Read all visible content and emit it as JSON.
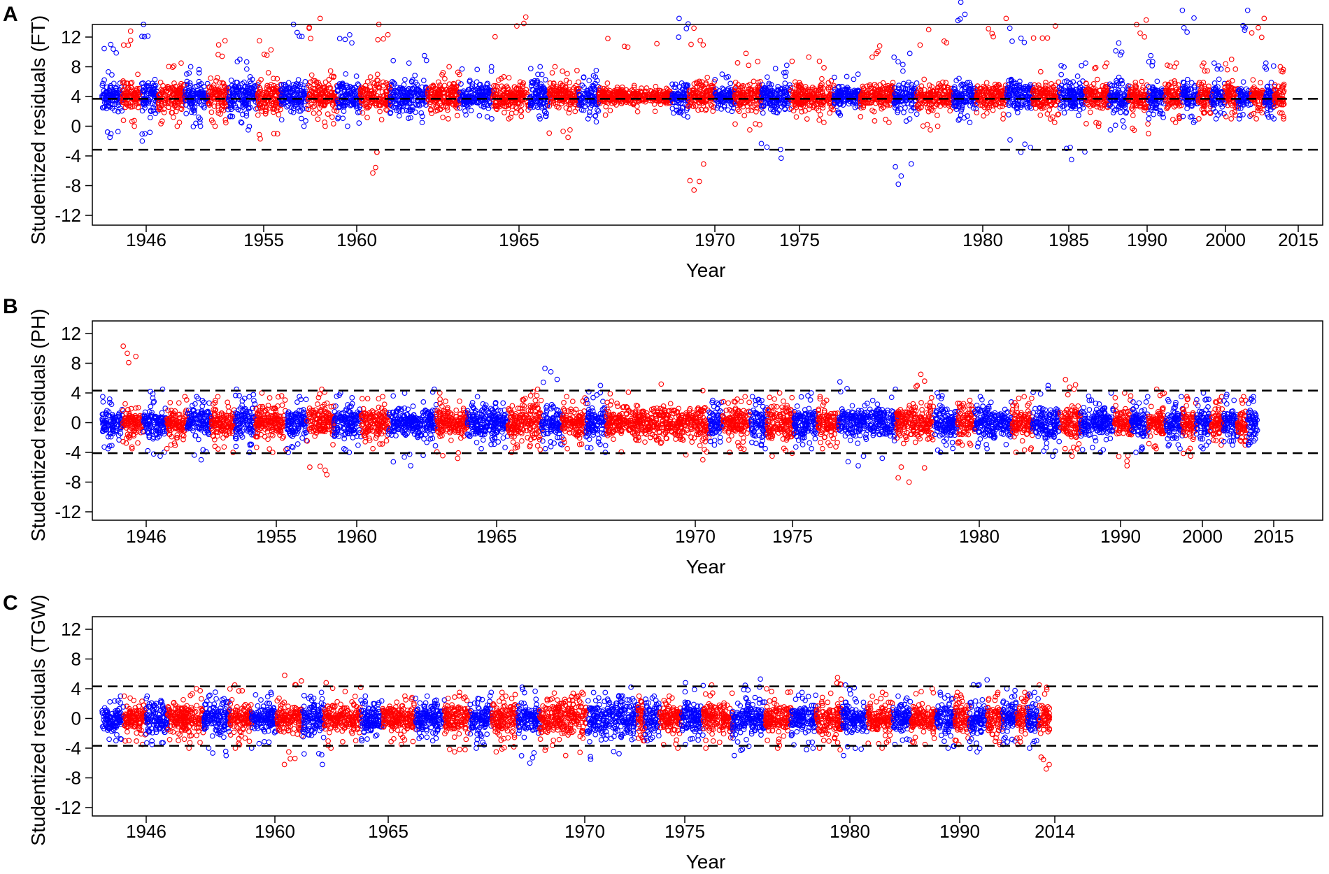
{
  "chart_data": [
    {
      "panel": "A",
      "type": "scatter",
      "ylabel": "Studentized residuals (FT)",
      "xlabel": "Year",
      "x_ticks": [
        "1946",
        "1955",
        "1960",
        "1965",
        "1970",
        "1975",
        "1980",
        "1985",
        "1990",
        "2000",
        "2015"
      ],
      "y_ticks": [
        "12",
        "8",
        "4",
        "0",
        "-4",
        "-8",
        "-12"
      ],
      "ylim": [
        -13.5,
        14
      ],
      "thresholds": [
        3.6,
        -3.3
      ],
      "series_colors": [
        "#0000ff",
        "#ff0000"
      ],
      "data_extent_fraction": 0.977,
      "segments": [
        {
          "w": 0.3,
          "sd": 1.0,
          "peak": 7.0,
          "low": -5.5
        },
        {
          "w": 0.3,
          "sd": 1.0,
          "peak": 8.8,
          "low": -4.0
        },
        {
          "w": 0.25,
          "sd": 1.0,
          "peak": 9.7,
          "low": -6.0
        },
        {
          "w": 0.4,
          "sd": 0.9,
          "peak": 4.5,
          "low": -4.0
        },
        {
          "w": 0.35,
          "sd": 1.0,
          "peak": 4.0,
          "low": -4.0
        },
        {
          "w": 0.3,
          "sd": 1.1,
          "peak": 7.5,
          "low": -4.0
        },
        {
          "w": 0.45,
          "sd": 1.1,
          "peak": 5.0,
          "low": -4.5
        },
        {
          "w": 0.35,
          "sd": 1.1,
          "peak": 7.5,
          "low": -5.7
        },
        {
          "w": 0.4,
          "sd": 1.0,
          "peak": 9.7,
          "low": -4.0
        },
        {
          "w": 0.45,
          "sd": 1.0,
          "peak": 10.5,
          "low": -4.0
        },
        {
          "w": 0.35,
          "sd": 1.0,
          "peak": 8.3,
          "low": -4.0
        },
        {
          "w": 0.45,
          "sd": 1.1,
          "peak": 9.7,
          "low": -10.3
        },
        {
          "w": 0.55,
          "sd": 1.0,
          "peak": 5.5,
          "low": -3.5
        },
        {
          "w": 0.5,
          "sd": 0.9,
          "peak": 4.0,
          "low": -3.0
        },
        {
          "w": 0.5,
          "sd": 0.9,
          "peak": 4.0,
          "low": -3.0
        },
        {
          "w": 0.55,
          "sd": 0.9,
          "peak": 10.7,
          "low": -3.0
        },
        {
          "w": 0.3,
          "sd": 1.0,
          "peak": 4.0,
          "low": -3.0
        },
        {
          "w": 0.45,
          "sd": 0.9,
          "peak": 4.0,
          "low": -5.5
        },
        {
          "w": 0.3,
          "sd": 1.0,
          "peak": 3.5,
          "low": -3.0
        },
        {
          "w": 1.1,
          "sd": 0.5,
          "peak": 7.8,
          "low": -2.5
        },
        {
          "w": 0.25,
          "sd": 1.0,
          "peak": 10.5,
          "low": -2.5
        },
        {
          "w": 0.4,
          "sd": 1.0,
          "peak": 9.2,
          "low": -12.6
        },
        {
          "w": 0.3,
          "sd": 0.6,
          "peak": 3.0,
          "low": -2.0
        },
        {
          "w": 0.4,
          "sd": 1.0,
          "peak": 5.8,
          "low": -4.5
        },
        {
          "w": 0.45,
          "sd": 1.0,
          "peak": 4.2,
          "low": -8.3
        },
        {
          "w": 0.65,
          "sd": 0.9,
          "peak": 5.3,
          "low": -3.5
        },
        {
          "w": 0.4,
          "sd": 0.6,
          "peak": 3.0,
          "low": -2.5
        },
        {
          "w": 0.5,
          "sd": 0.8,
          "peak": 6.8,
          "low": -3.5
        },
        {
          "w": 0.35,
          "sd": 1.0,
          "peak": 5.8,
          "low": -11.8
        },
        {
          "w": 0.55,
          "sd": 0.8,
          "peak": 9.0,
          "low": -4.5
        },
        {
          "w": 0.35,
          "sd": 1.0,
          "peak": 12.7,
          "low": -3.5
        },
        {
          "w": 0.45,
          "sd": 0.8,
          "peak": 10.5,
          "low": -3.0
        },
        {
          "w": 0.4,
          "sd": 1.0,
          "peak": 9.2,
          "low": -7.5
        },
        {
          "w": 0.4,
          "sd": 1.0,
          "peak": 9.5,
          "low": -3.5
        },
        {
          "w": 0.4,
          "sd": 1.0,
          "peak": 4.5,
          "low": -8.5
        },
        {
          "w": 0.35,
          "sd": 0.9,
          "peak": 4.5,
          "low": -4.0
        },
        {
          "w": 0.3,
          "sd": 0.9,
          "peak": 7.2,
          "low": -4.5
        },
        {
          "w": 0.3,
          "sd": 0.9,
          "peak": 10.3,
          "low": -5.0
        },
        {
          "w": 0.25,
          "sd": 0.9,
          "peak": 5.5,
          "low": -3.0
        },
        {
          "w": 0.25,
          "sd": 0.9,
          "peak": 4.5,
          "low": -3.5
        },
        {
          "w": 0.25,
          "sd": 0.9,
          "peak": 11.6,
          "low": -3.5
        },
        {
          "w": 0.2,
          "sd": 0.9,
          "peak": 4.5,
          "low": -3.0
        },
        {
          "w": 0.2,
          "sd": 0.9,
          "peak": 4.5,
          "low": -3.0
        },
        {
          "w": 0.2,
          "sd": 0.9,
          "peak": 5.0,
          "low": -3.0
        },
        {
          "w": 0.2,
          "sd": 0.9,
          "peak": 11.6,
          "low": -3.0
        },
        {
          "w": 0.2,
          "sd": 0.9,
          "peak": 10.5,
          "low": -3.0
        },
        {
          "w": 0.15,
          "sd": 0.9,
          "peak": 4.5,
          "low": -3.0
        },
        {
          "w": 0.15,
          "sd": 0.9,
          "peak": 4.0,
          "low": -3.0
        }
      ]
    },
    {
      "panel": "B",
      "type": "scatter",
      "ylabel": "Studentized residuals (PH)",
      "xlabel": "Year",
      "x_ticks": [
        "1946",
        "1955",
        "1960",
        "1965",
        "1970",
        "1975",
        "1980",
        "1990",
        "2000",
        "2015"
      ],
      "y_ticks": [
        "12",
        "8",
        "4",
        "0",
        "-4",
        "-8",
        "-12"
      ],
      "ylim": [
        -13.5,
        14
      ],
      "thresholds": [
        4.3,
        -4.1
      ],
      "series_colors": [
        "#0000ff",
        "#ff0000"
      ],
      "data_extent_fraction": 0.955,
      "segments": [
        {
          "w": 0.3,
          "sd": 0.9,
          "peak": 3.5,
          "low": -3.5
        },
        {
          "w": 0.3,
          "sd": 1.0,
          "peak": 10.3,
          "low": -3.5
        },
        {
          "w": 0.35,
          "sd": 1.0,
          "peak": 4.5,
          "low": -4.5
        },
        {
          "w": 0.3,
          "sd": 1.0,
          "peak": 3.5,
          "low": -3.5
        },
        {
          "w": 0.35,
          "sd": 0.9,
          "peak": 3.5,
          "low": -5.0
        },
        {
          "w": 0.35,
          "sd": 1.0,
          "peak": 3.5,
          "low": -4.0
        },
        {
          "w": 0.3,
          "sd": 1.2,
          "peak": 4.5,
          "low": -4.0
        },
        {
          "w": 0.45,
          "sd": 1.0,
          "peak": 4.0,
          "low": -4.0
        },
        {
          "w": 0.3,
          "sd": 1.0,
          "peak": 3.5,
          "low": -4.0
        },
        {
          "w": 0.4,
          "sd": 1.0,
          "peak": 4.5,
          "low": -7.0
        },
        {
          "w": 0.4,
          "sd": 1.0,
          "peak": 4.0,
          "low": -4.0
        },
        {
          "w": 0.4,
          "sd": 1.0,
          "peak": 3.5,
          "low": -3.5
        },
        {
          "w": 0.7,
          "sd": 1.0,
          "peak": 4.5,
          "low": -5.8
        },
        {
          "w": 0.45,
          "sd": 1.0,
          "peak": 4.0,
          "low": -4.8
        },
        {
          "w": 0.6,
          "sd": 1.0,
          "peak": 3.5,
          "low": -3.5
        },
        {
          "w": 0.5,
          "sd": 1.3,
          "peak": 4.5,
          "low": -4.0
        },
        {
          "w": 0.3,
          "sd": 1.1,
          "peak": 7.3,
          "low": -3.5
        },
        {
          "w": 0.35,
          "sd": 1.0,
          "peak": 3.5,
          "low": -3.5
        },
        {
          "w": 0.3,
          "sd": 1.1,
          "peak": 5.0,
          "low": -4.0
        },
        {
          "w": 1.5,
          "sd": 1.1,
          "peak": 5.2,
          "low": -5.0
        },
        {
          "w": 0.2,
          "sd": 1.0,
          "peak": 3.0,
          "low": -3.0
        },
        {
          "w": 0.4,
          "sd": 1.0,
          "peak": 3.5,
          "low": -4.0
        },
        {
          "w": 0.25,
          "sd": 1.1,
          "peak": 3.5,
          "low": -3.5
        },
        {
          "w": 0.4,
          "sd": 1.1,
          "peak": 4.0,
          "low": -4.5
        },
        {
          "w": 0.35,
          "sd": 1.0,
          "peak": 4.0,
          "low": -3.5
        },
        {
          "w": 0.3,
          "sd": 1.0,
          "peak": 3.5,
          "low": -3.5
        },
        {
          "w": 0.85,
          "sd": 1.0,
          "peak": 5.5,
          "low": -5.8
        },
        {
          "w": 0.55,
          "sd": 1.2,
          "peak": 6.5,
          "low": -8.0
        },
        {
          "w": 0.35,
          "sd": 1.0,
          "peak": 4.0,
          "low": -4.0
        },
        {
          "w": 0.25,
          "sd": 1.0,
          "peak": 3.0,
          "low": -3.0
        },
        {
          "w": 0.55,
          "sd": 0.9,
          "peak": 3.5,
          "low": -3.5
        },
        {
          "w": 0.3,
          "sd": 1.0,
          "peak": 3.5,
          "low": -4.0
        },
        {
          "w": 0.4,
          "sd": 1.1,
          "peak": 5.0,
          "low": -4.5
        },
        {
          "w": 0.3,
          "sd": 1.1,
          "peak": 5.8,
          "low": -4.5
        },
        {
          "w": 0.5,
          "sd": 1.0,
          "peak": 4.0,
          "low": -4.0
        },
        {
          "w": 0.25,
          "sd": 1.0,
          "peak": 4.0,
          "low": -5.8
        },
        {
          "w": 0.25,
          "sd": 1.0,
          "peak": 3.5,
          "low": -4.0
        },
        {
          "w": 0.25,
          "sd": 1.0,
          "peak": 4.5,
          "low": -3.5
        },
        {
          "w": 0.25,
          "sd": 1.0,
          "peak": 3.5,
          "low": -3.5
        },
        {
          "w": 0.2,
          "sd": 1.0,
          "peak": 3.5,
          "low": -4.5
        },
        {
          "w": 0.2,
          "sd": 1.0,
          "peak": 4.0,
          "low": -3.5
        },
        {
          "w": 0.2,
          "sd": 1.0,
          "peak": 3.5,
          "low": -3.0
        },
        {
          "w": 0.2,
          "sd": 1.0,
          "peak": 3.5,
          "low": -3.0
        },
        {
          "w": 0.15,
          "sd": 1.0,
          "peak": 3.5,
          "low": -3.0
        },
        {
          "w": 0.15,
          "sd": 1.0,
          "peak": 3.5,
          "low": -3.0
        }
      ]
    },
    {
      "panel": "C",
      "type": "scatter",
      "ylabel": "Studentized residuals (TGW)",
      "xlabel": "Year",
      "x_ticks": [
        "1946",
        "1960",
        "1965",
        "1970",
        "1975",
        "1980",
        "1990",
        "2014"
      ],
      "y_ticks": [
        "12",
        "8",
        "4",
        "0",
        "-4",
        "-8",
        "-12"
      ],
      "ylim": [
        -13.5,
        14
      ],
      "thresholds": [
        4.0,
        -3.7
      ],
      "series_colors": [
        "#0000ff",
        "#ff0000"
      ],
      "data_extent_fraction": 0.783,
      "segments": [
        {
          "w": 0.3,
          "sd": 0.9,
          "peak": 3.0,
          "low": -3.0
        },
        {
          "w": 0.3,
          "sd": 0.9,
          "peak": 3.0,
          "low": -3.5
        },
        {
          "w": 0.3,
          "sd": 1.0,
          "peak": 3.0,
          "low": -3.5
        },
        {
          "w": 0.5,
          "sd": 1.1,
          "peak": 4.0,
          "low": -4.0
        },
        {
          "w": 0.35,
          "sd": 1.1,
          "peak": 3.0,
          "low": -5.0
        },
        {
          "w": 0.3,
          "sd": 1.0,
          "peak": 4.5,
          "low": -4.0
        },
        {
          "w": 0.35,
          "sd": 1.0,
          "peak": 3.5,
          "low": -4.0
        },
        {
          "w": 0.35,
          "sd": 1.0,
          "peak": 5.8,
          "low": -6.2
        },
        {
          "w": 0.3,
          "sd": 1.1,
          "peak": 3.5,
          "low": -6.2
        },
        {
          "w": 0.5,
          "sd": 1.0,
          "peak": 4.8,
          "low": -4.0
        },
        {
          "w": 0.3,
          "sd": 0.9,
          "peak": 3.0,
          "low": -3.0
        },
        {
          "w": 0.45,
          "sd": 0.9,
          "peak": 3.0,
          "low": -3.5
        },
        {
          "w": 0.4,
          "sd": 1.0,
          "peak": 3.0,
          "low": -3.0
        },
        {
          "w": 0.35,
          "sd": 1.0,
          "peak": 3.5,
          "low": -4.5
        },
        {
          "w": 0.3,
          "sd": 1.1,
          "peak": 3.5,
          "low": -4.0
        },
        {
          "w": 0.35,
          "sd": 1.2,
          "peak": 3.5,
          "low": -4.5
        },
        {
          "w": 0.3,
          "sd": 1.0,
          "peak": 4.2,
          "low": -6.0
        },
        {
          "w": 0.65,
          "sd": 1.3,
          "peak": 3.5,
          "low": -5.0
        },
        {
          "w": 0.7,
          "sd": 1.3,
          "peak": 4.2,
          "low": -5.5
        },
        {
          "w": 0.1,
          "sd": 1.0,
          "peak": 3.0,
          "low": -3.0
        },
        {
          "w": 0.2,
          "sd": 1.0,
          "peak": 3.0,
          "low": -3.0
        },
        {
          "w": 0.3,
          "sd": 1.0,
          "peak": 3.0,
          "low": -4.0
        },
        {
          "w": 0.3,
          "sd": 1.1,
          "peak": 4.8,
          "low": -3.5
        },
        {
          "w": 0.4,
          "sd": 1.0,
          "peak": 4.5,
          "low": -4.0
        },
        {
          "w": 0.45,
          "sd": 1.3,
          "peak": 5.3,
          "low": -5.0
        },
        {
          "w": 0.35,
          "sd": 1.0,
          "peak": 4.0,
          "low": -4.0
        },
        {
          "w": 0.35,
          "sd": 1.0,
          "peak": 3.5,
          "low": -4.0
        },
        {
          "w": 0.35,
          "sd": 1.2,
          "peak": 5.5,
          "low": -4.0
        },
        {
          "w": 0.35,
          "sd": 1.0,
          "peak": 4.5,
          "low": -5.0
        },
        {
          "w": 0.35,
          "sd": 1.0,
          "peak": 3.5,
          "low": -4.0
        },
        {
          "w": 0.25,
          "sd": 0.9,
          "peak": 3.0,
          "low": -3.5
        },
        {
          "w": 0.35,
          "sd": 0.8,
          "peak": 4.0,
          "low": -3.5
        },
        {
          "w": 0.25,
          "sd": 1.0,
          "peak": 3.5,
          "low": -4.0
        },
        {
          "w": 0.2,
          "sd": 1.0,
          "peak": 3.5,
          "low": -3.5
        },
        {
          "w": 0.25,
          "sd": 1.0,
          "peak": 5.2,
          "low": -4.5
        },
        {
          "w": 0.2,
          "sd": 1.0,
          "peak": 3.5,
          "low": -3.5
        },
        {
          "w": 0.2,
          "sd": 1.0,
          "peak": 4.0,
          "low": -3.5
        },
        {
          "w": 0.15,
          "sd": 1.0,
          "peak": 3.5,
          "low": -3.5
        },
        {
          "w": 0.15,
          "sd": 1.0,
          "peak": 3.5,
          "low": -4.0
        },
        {
          "w": 0.15,
          "sd": 1.0,
          "peak": 4.5,
          "low": -6.8
        }
      ]
    }
  ]
}
